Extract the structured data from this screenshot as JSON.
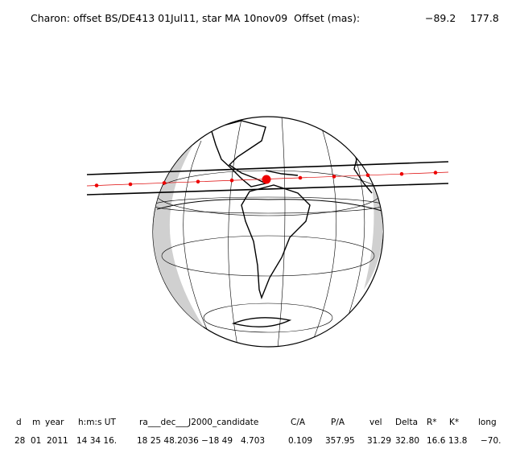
{
  "header": {
    "title": "Charon: offset BS/DE413 01Jul11, star MA 10nov09  Offset (mas):",
    "offset_x": "−89.2",
    "offset_y": "177.8"
  },
  "table": {
    "headers": [
      "d",
      "m",
      "year",
      "h:m:s UT",
      "ra___dec___J2000_candidate",
      "C/A",
      "P/A",
      "vel",
      "Delta",
      "R*",
      "K*",
      "long"
    ],
    "values": [
      "28",
      "01",
      "2011",
      "14 34 16.",
      "18 25 48.2036 −18 49   4.703",
      "0.109",
      "357.95",
      "31.29",
      "32.80",
      "16.6",
      "13.8",
      "−70."
    ]
  }
}
